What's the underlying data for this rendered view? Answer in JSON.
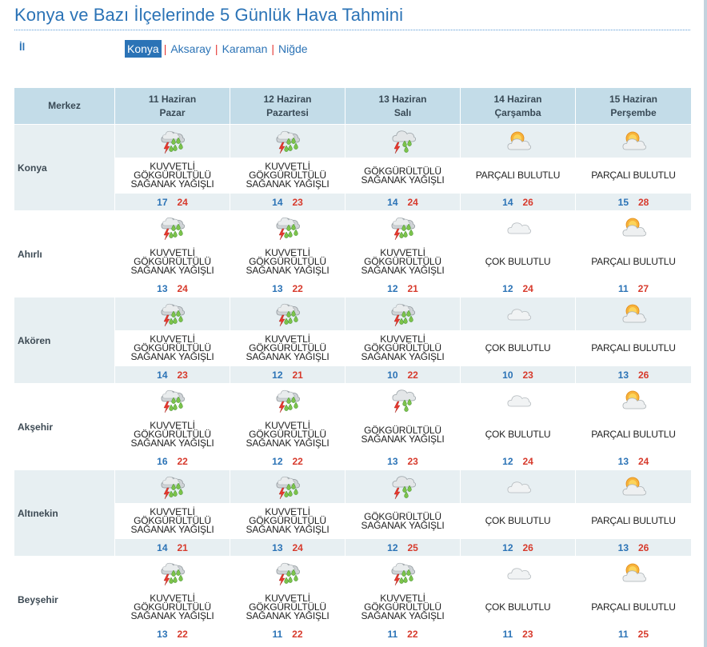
{
  "page": {
    "title": "Konya ve Bazı İlçelerinde 5 Günlük Hava Tahmini"
  },
  "province_selector": {
    "label": "İl",
    "items": [
      {
        "label": "Konya",
        "active": true
      },
      {
        "label": "Aksaray",
        "active": false
      },
      {
        "label": "Karaman",
        "active": false
      },
      {
        "label": "Niğde",
        "active": false
      }
    ],
    "separator": "|"
  },
  "table": {
    "corner_label": "Merkez",
    "days": [
      {
        "date": "11 Haziran",
        "weekday": "Pazar"
      },
      {
        "date": "12 Haziran",
        "weekday": "Pazartesi"
      },
      {
        "date": "13 Haziran",
        "weekday": "Salı"
      },
      {
        "date": "14 Haziran",
        "weekday": "Çarşamba"
      },
      {
        "date": "15 Haziran",
        "weekday": "Perşembe"
      }
    ],
    "rows": [
      {
        "district": "Konya",
        "forecasts": [
          {
            "icon": "heavy-thunder-shower-icon",
            "condition": "KUVVETLİ GÖKGÜRÜLTÜLÜ SAĞANAK YAĞIŞLI",
            "min": "17",
            "max": "24"
          },
          {
            "icon": "heavy-thunder-shower-icon",
            "condition": "KUVVETLİ GÖKGÜRÜLTÜLÜ SAĞANAK YAĞIŞLI",
            "min": "14",
            "max": "23"
          },
          {
            "icon": "thunder-shower-icon",
            "condition": "GÖKGÜRÜLTÜLÜ SAĞANAK YAĞIŞLI",
            "min": "14",
            "max": "24"
          },
          {
            "icon": "partly-cloudy-icon",
            "condition": "PARÇALI BULUTLU",
            "min": "14",
            "max": "26"
          },
          {
            "icon": "partly-cloudy-icon",
            "condition": "PARÇALI BULUTLU",
            "min": "15",
            "max": "28"
          }
        ]
      },
      {
        "district": "Ahırlı",
        "forecasts": [
          {
            "icon": "heavy-thunder-shower-icon",
            "condition": "KUVVETLİ GÖKGÜRÜLTÜLÜ SAĞANAK YAĞIŞLI",
            "min": "13",
            "max": "24"
          },
          {
            "icon": "heavy-thunder-shower-icon",
            "condition": "KUVVETLİ GÖKGÜRÜLTÜLÜ SAĞANAK YAĞIŞLI",
            "min": "13",
            "max": "22"
          },
          {
            "icon": "heavy-thunder-shower-icon",
            "condition": "KUVVETLİ GÖKGÜRÜLTÜLÜ SAĞANAK YAĞIŞLI",
            "min": "12",
            "max": "21"
          },
          {
            "icon": "cloudy-icon",
            "condition": "ÇOK BULUTLU",
            "min": "12",
            "max": "24"
          },
          {
            "icon": "partly-cloudy-icon",
            "condition": "PARÇALI BULUTLU",
            "min": "11",
            "max": "27"
          }
        ]
      },
      {
        "district": "Akören",
        "forecasts": [
          {
            "icon": "heavy-thunder-shower-icon",
            "condition": "KUVVETLİ GÖKGÜRÜLTÜLÜ SAĞANAK YAĞIŞLI",
            "min": "14",
            "max": "23"
          },
          {
            "icon": "heavy-thunder-shower-icon",
            "condition": "KUVVETLİ GÖKGÜRÜLTÜLÜ SAĞANAK YAĞIŞLI",
            "min": "12",
            "max": "21"
          },
          {
            "icon": "heavy-thunder-shower-icon",
            "condition": "KUVVETLİ GÖKGÜRÜLTÜLÜ SAĞANAK YAĞIŞLI",
            "min": "10",
            "max": "22"
          },
          {
            "icon": "cloudy-icon",
            "condition": "ÇOK BULUTLU",
            "min": "10",
            "max": "23"
          },
          {
            "icon": "partly-cloudy-icon",
            "condition": "PARÇALI BULUTLU",
            "min": "13",
            "max": "26"
          }
        ]
      },
      {
        "district": "Akşehir",
        "forecasts": [
          {
            "icon": "heavy-thunder-shower-icon",
            "condition": "KUVVETLİ GÖKGÜRÜLTÜLÜ SAĞANAK YAĞIŞLI",
            "min": "16",
            "max": "22"
          },
          {
            "icon": "heavy-thunder-shower-icon",
            "condition": "KUVVETLİ GÖKGÜRÜLTÜLÜ SAĞANAK YAĞIŞLI",
            "min": "12",
            "max": "22"
          },
          {
            "icon": "thunder-shower-icon",
            "condition": "GÖKGÜRÜLTÜLÜ SAĞANAK YAĞIŞLI",
            "min": "13",
            "max": "23"
          },
          {
            "icon": "cloudy-icon",
            "condition": "ÇOK BULUTLU",
            "min": "12",
            "max": "24"
          },
          {
            "icon": "partly-cloudy-icon",
            "condition": "PARÇALI BULUTLU",
            "min": "13",
            "max": "24"
          }
        ]
      },
      {
        "district": "Altınekin",
        "forecasts": [
          {
            "icon": "heavy-thunder-shower-icon",
            "condition": "KUVVETLİ GÖKGÜRÜLTÜLÜ SAĞANAK YAĞIŞLI",
            "min": "14",
            "max": "21"
          },
          {
            "icon": "heavy-thunder-shower-icon",
            "condition": "KUVVETLİ GÖKGÜRÜLTÜLÜ SAĞANAK YAĞIŞLI",
            "min": "13",
            "max": "24"
          },
          {
            "icon": "thunder-shower-icon",
            "condition": "GÖKGÜRÜLTÜLÜ SAĞANAK YAĞIŞLI",
            "min": "12",
            "max": "25"
          },
          {
            "icon": "cloudy-icon",
            "condition": "ÇOK BULUTLU",
            "min": "12",
            "max": "26"
          },
          {
            "icon": "partly-cloudy-icon",
            "condition": "PARÇALI BULUTLU",
            "min": "13",
            "max": "26"
          }
        ]
      },
      {
        "district": "Beyşehir",
        "forecasts": [
          {
            "icon": "heavy-thunder-shower-icon",
            "condition": "KUVVETLİ GÖKGÜRÜLTÜLÜ SAĞANAK YAĞIŞLI",
            "min": "13",
            "max": "22"
          },
          {
            "icon": "heavy-thunder-shower-icon",
            "condition": "KUVVETLİ GÖKGÜRÜLTÜLÜ SAĞANAK YAĞIŞLI",
            "min": "11",
            "max": "22"
          },
          {
            "icon": "heavy-thunder-shower-icon",
            "condition": "KUVVETLİ GÖKGÜRÜLTÜLÜ SAĞANAK YAĞIŞLI",
            "min": "11",
            "max": "22"
          },
          {
            "icon": "cloudy-icon",
            "condition": "ÇOK BULUTLU",
            "min": "11",
            "max": "23"
          },
          {
            "icon": "partly-cloudy-icon",
            "condition": "PARÇALI BULUTLU",
            "min": "11",
            "max": "25"
          }
        ]
      }
    ]
  },
  "colors": {
    "title": "#2b73b6",
    "header_bg": "#c3dce8",
    "band_bg": "#e7eff2",
    "temp_min": "#2b73b6",
    "temp_max": "#d73a2c",
    "separator": "#e53935"
  }
}
